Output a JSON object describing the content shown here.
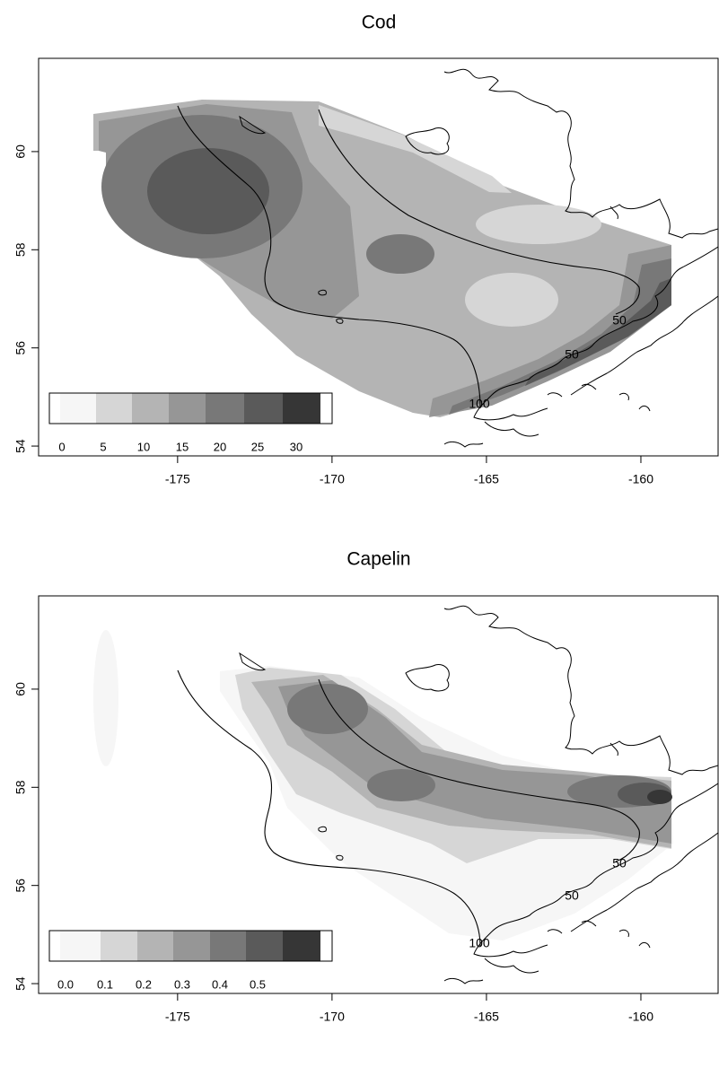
{
  "chart_data": [
    {
      "type": "heatmap",
      "title": "Cod",
      "xlim": [
        -179.5,
        -157.5
      ],
      "ylim": [
        53.8,
        61.9
      ],
      "x_ticks": [
        -175,
        -170,
        -165,
        -160
      ],
      "y_ticks": [
        54,
        56,
        58,
        60
      ],
      "legend": {
        "placement": "bottom-left",
        "breaks": [
          "0",
          "5",
          "10",
          "15",
          "20",
          "25",
          "30"
        ],
        "shades": [
          "#f6f6f6",
          "#d6d6d6",
          "#b4b4b4",
          "#969696",
          "#787878",
          "#5a5a5a",
          "#363636"
        ]
      },
      "contour_labels": [
        "50",
        "50",
        "100"
      ],
      "density_peaks": [
        {
          "lon": -173.8,
          "lat": 59.1,
          "value": 24
        },
        {
          "lon": -167.4,
          "lat": 57.9,
          "value": 19
        },
        {
          "lon": -163.0,
          "lat": 57.0,
          "value": 6
        },
        {
          "lon": -159.2,
          "lat": 56.6,
          "value": 26
        }
      ]
    },
    {
      "type": "heatmap",
      "title": "Capelin",
      "xlim": [
        -179.5,
        -157.5
      ],
      "ylim": [
        53.8,
        61.9
      ],
      "x_ticks": [
        -175,
        -170,
        -165,
        -160
      ],
      "y_ticks": [
        54,
        56,
        58,
        60
      ],
      "legend": {
        "placement": "bottom-left",
        "breaks": [
          "0.0",
          "0.1",
          "0.2",
          "0.3",
          "0.4",
          "0.5"
        ],
        "shades": [
          "#f6f6f6",
          "#d6d6d6",
          "#b4b4b4",
          "#969696",
          "#787878",
          "#5a5a5a",
          "#363636"
        ]
      },
      "contour_labels": [
        "50",
        "50",
        "100"
      ],
      "density_peaks": [
        {
          "lon": -168.7,
          "lat": 59.9,
          "value": 0.35
        },
        {
          "lon": -167.6,
          "lat": 58.1,
          "value": 0.34
        },
        {
          "lon": -159.0,
          "lat": 58.0,
          "value": 0.47
        }
      ]
    }
  ]
}
